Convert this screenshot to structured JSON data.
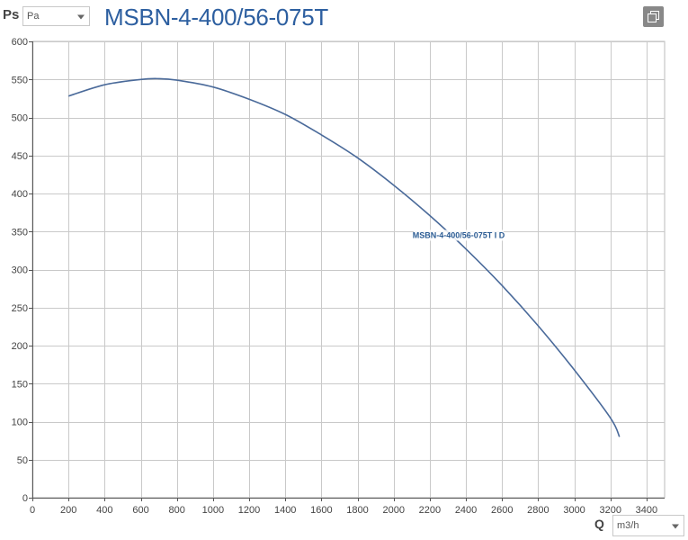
{
  "header": {
    "y_quantity_label": "Ps",
    "y_unit_select": "Pa",
    "title": "MSBN-4-400/56-075T",
    "copy_icon": "copy-icon"
  },
  "footer": {
    "x_quantity_label": "Q",
    "x_unit_select": "m3/h"
  },
  "chart_data": {
    "type": "line",
    "title": "MSBN-4-400/56-075T",
    "xlabel": "Q",
    "ylabel": "Ps",
    "xlim": [
      0,
      3500
    ],
    "ylim": [
      0,
      600
    ],
    "x_ticks": [
      0,
      200,
      400,
      600,
      800,
      1000,
      1200,
      1400,
      1600,
      1800,
      2000,
      2200,
      2400,
      2600,
      2800,
      3000,
      3200,
      3400
    ],
    "y_ticks": [
      0,
      50,
      100,
      150,
      200,
      250,
      300,
      350,
      400,
      450,
      500,
      550,
      600
    ],
    "grid": true,
    "series": [
      {
        "name": "MSBN-4-400/56-075T I D",
        "color": "#4a6a9a",
        "x": [
          200,
          400,
          600,
          700,
          800,
          1000,
          1200,
          1400,
          1600,
          1800,
          2000,
          2200,
          2400,
          2600,
          2800,
          3000,
          3200,
          3250
        ],
        "y": [
          528,
          543,
          550,
          551,
          549,
          540,
          524,
          504,
          477,
          447,
          411,
          371,
          327,
          279,
          226,
          168,
          105,
          80
        ]
      }
    ]
  }
}
